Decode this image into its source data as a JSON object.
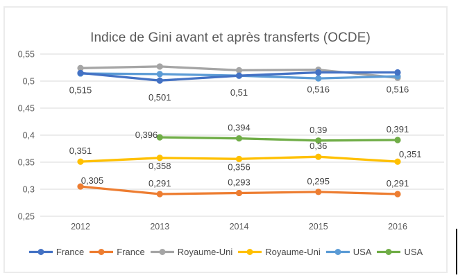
{
  "window": {
    "background": "#ffffff",
    "frame_border_color": "#ebebeb",
    "gridline_color": "#d9d9d9",
    "axis_text_color": "#595959",
    "data_label_color": "#404040"
  },
  "chart_data": {
    "type": "line",
    "title": "Indice de Gini avant et après transferts (OCDE)",
    "categories": [
      "2012",
      "2013",
      "2014",
      "2015",
      "2016"
    ],
    "y_tick_labels": [
      "0,55",
      "0,5",
      "0,45",
      "0,4",
      "0,35",
      "0,3",
      "0,25"
    ],
    "ylim": [
      0.25,
      0.55
    ],
    "grid": true,
    "legend_position": "bottom",
    "decimal_style": "comma",
    "series": [
      {
        "name": "France",
        "color": "#4472C4",
        "values": [
          0.515,
          0.501,
          0.51,
          0.516,
          0.516
        ],
        "labels": [
          "0,515",
          "0,501",
          "0,51",
          "0,516",
          "0,516"
        ],
        "label_pos": [
          "below_far",
          "below_far",
          "below_far",
          "below_far",
          "below_far"
        ]
      },
      {
        "name": "France",
        "color": "#ED7D31",
        "values": [
          0.305,
          0.291,
          0.293,
          0.295,
          0.291
        ],
        "labels": [
          "0,305",
          "0,291",
          "0,293",
          "0,295",
          "0,291"
        ],
        "label_pos": [
          "above_right",
          "above",
          "above",
          "above",
          "above"
        ]
      },
      {
        "name": "Royaume-Uni",
        "color": "#A5A5A5",
        "values": [
          0.524,
          0.527,
          0.52,
          0.521,
          0.506
        ],
        "labels": null,
        "label_pos": null
      },
      {
        "name": "Royaume-Uni",
        "color": "#FFC000",
        "values": [
          0.351,
          0.358,
          0.356,
          0.36,
          0.351
        ],
        "labels": [
          "0,351",
          "0,358",
          "0,356",
          "0,36",
          "0,351"
        ],
        "label_pos": [
          "above",
          "below",
          "below",
          "above",
          "right"
        ]
      },
      {
        "name": "USA",
        "color": "#5B9BD5",
        "values": [
          0.514,
          0.513,
          0.51,
          0.505,
          0.509
        ],
        "labels": null,
        "label_pos": null
      },
      {
        "name": "USA",
        "color": "#70AD47",
        "values": [
          null,
          0.396,
          0.394,
          0.39,
          0.391
        ],
        "labels": [
          null,
          "0,396",
          "0,394",
          "0,39",
          "0,391"
        ],
        "label_pos": [
          null,
          "left",
          "above",
          "above",
          "above"
        ]
      }
    ],
    "draw_order": [
      2,
      4,
      0,
      3,
      1,
      5
    ]
  }
}
